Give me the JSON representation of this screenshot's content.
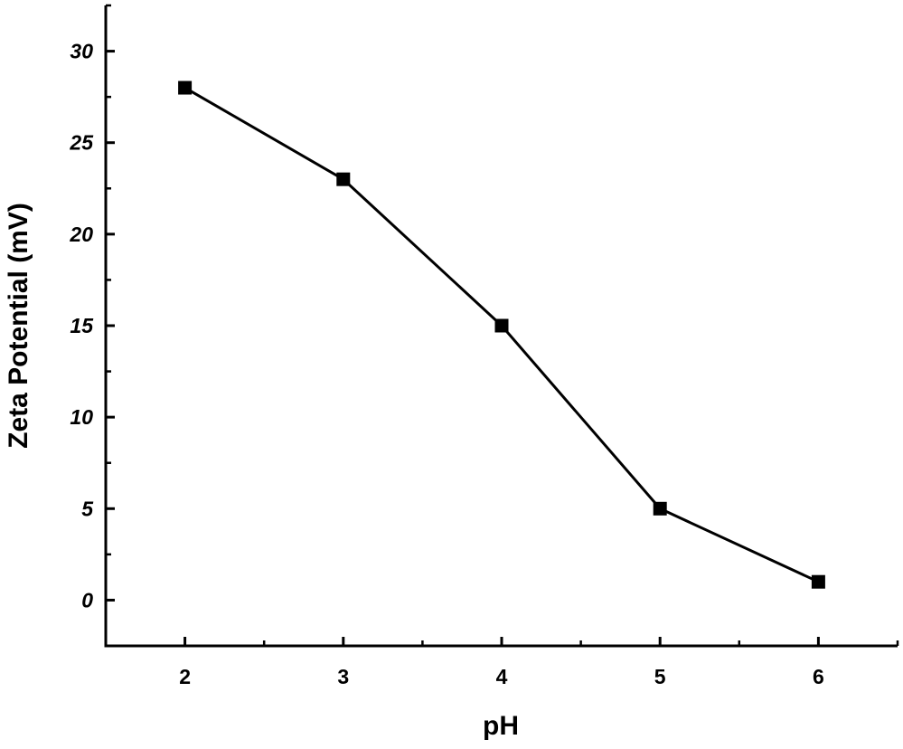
{
  "chart_data": {
    "type": "line",
    "title": "",
    "xlabel": "pH",
    "ylabel": "Zeta Potential (mV)",
    "x": [
      2,
      3,
      4,
      5,
      6
    ],
    "series": [
      {
        "values": [
          28,
          23,
          15,
          5,
          1
        ],
        "marker": "square",
        "color": "#000000"
      }
    ],
    "xlim": [
      1.5,
      6.5
    ],
    "ylim": [
      -2.5,
      32.5
    ],
    "xticks": [
      "2",
      "3",
      "4",
      "5",
      "6"
    ],
    "yticks": [
      "0",
      "5",
      "10",
      "15",
      "20",
      "25",
      "30"
    ],
    "grid": false,
    "legend": "none"
  }
}
